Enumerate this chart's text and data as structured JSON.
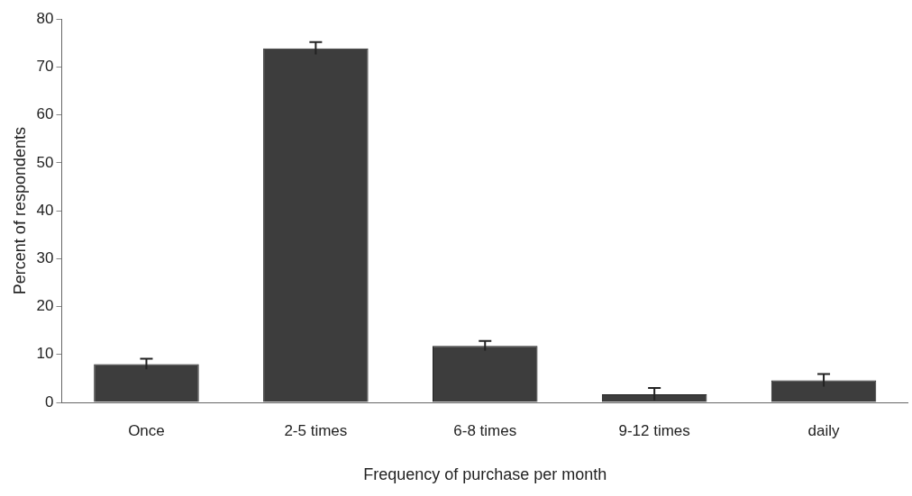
{
  "chart_data": {
    "type": "bar",
    "xlabel": "Frequency of purchase per month",
    "ylabel": "Percent of respondents",
    "categories": [
      "Once",
      "2-5 times",
      "6-8 times",
      "9-12 times",
      "daily"
    ],
    "values": [
      8.0,
      73.9,
      11.8,
      1.7,
      4.6
    ],
    "errors": [
      1.1,
      1.3,
      1.0,
      1.3,
      1.3
    ],
    "color": "#3d3d3d",
    "ylim": [
      0,
      80
    ],
    "yticks": [
      0,
      10,
      20,
      30,
      40,
      50,
      60,
      70,
      80
    ],
    "grid": false,
    "legend": false
  }
}
